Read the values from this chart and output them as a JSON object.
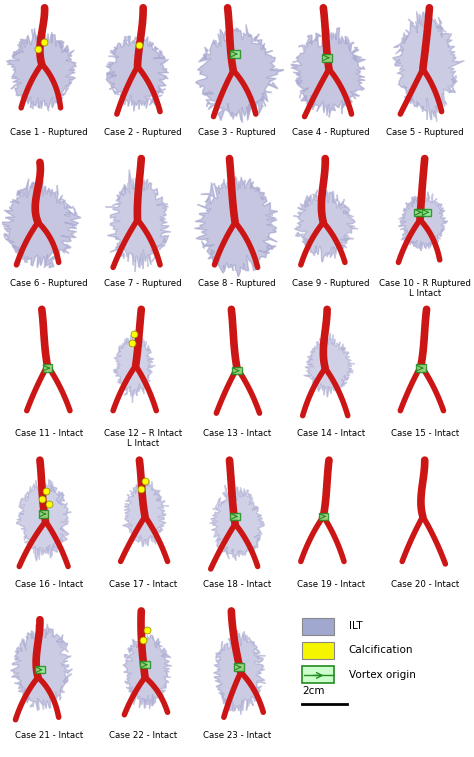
{
  "figsize": [
    4.74,
    7.57
  ],
  "dpi": 100,
  "bg_color": "#ffffff",
  "rows": [
    [
      "Case 1 - Ruptured",
      "Case 2 - Ruptured",
      "Case 3 - Ruptured",
      "Case 4 - Ruptured",
      "Case 5 - Ruptured"
    ],
    [
      "Case 6 - Ruptured",
      "Case 7 - Ruptured",
      "Case 8 - Ruptured",
      "Case 9 - Ruptured",
      "Case 10 - R Ruptured\nL Intact"
    ],
    [
      "Case 11 - Intact",
      "Case 12 – R Intact\nL Intact",
      "Case 13 - Intact",
      "Case 14 - Intact",
      "Case 15 - Intact"
    ],
    [
      "Case 16 - Intact",
      "Case 17 - Intact",
      "Case 18 - Intact",
      "Case 19 - Intact",
      "Case 20 - Intact"
    ],
    [
      "Case 21 - Intact",
      "Case 22 - Intact",
      "Case 23 - Intact",
      "",
      ""
    ]
  ],
  "legend_items": [
    {
      "color": "#a0a8d0",
      "edgecolor": "#888888",
      "label": "ILT",
      "hatch": ""
    },
    {
      "color": "#f5f500",
      "edgecolor": "#888888",
      "label": "Calcification",
      "hatch": ""
    },
    {
      "color": "#ccffcc",
      "edgecolor": "#228b22",
      "label": "Vortex origin",
      "hatch": ""
    }
  ],
  "scale_label": "2cm",
  "label_fontsize": 6.2,
  "legend_fontsize": 7.5,
  "vessel_color": "#cc1515",
  "ilt_color": "#9898c8",
  "calc_color": "#ffff00",
  "vortex_color": "#90ee90",
  "vortex_edge": "#228b22"
}
